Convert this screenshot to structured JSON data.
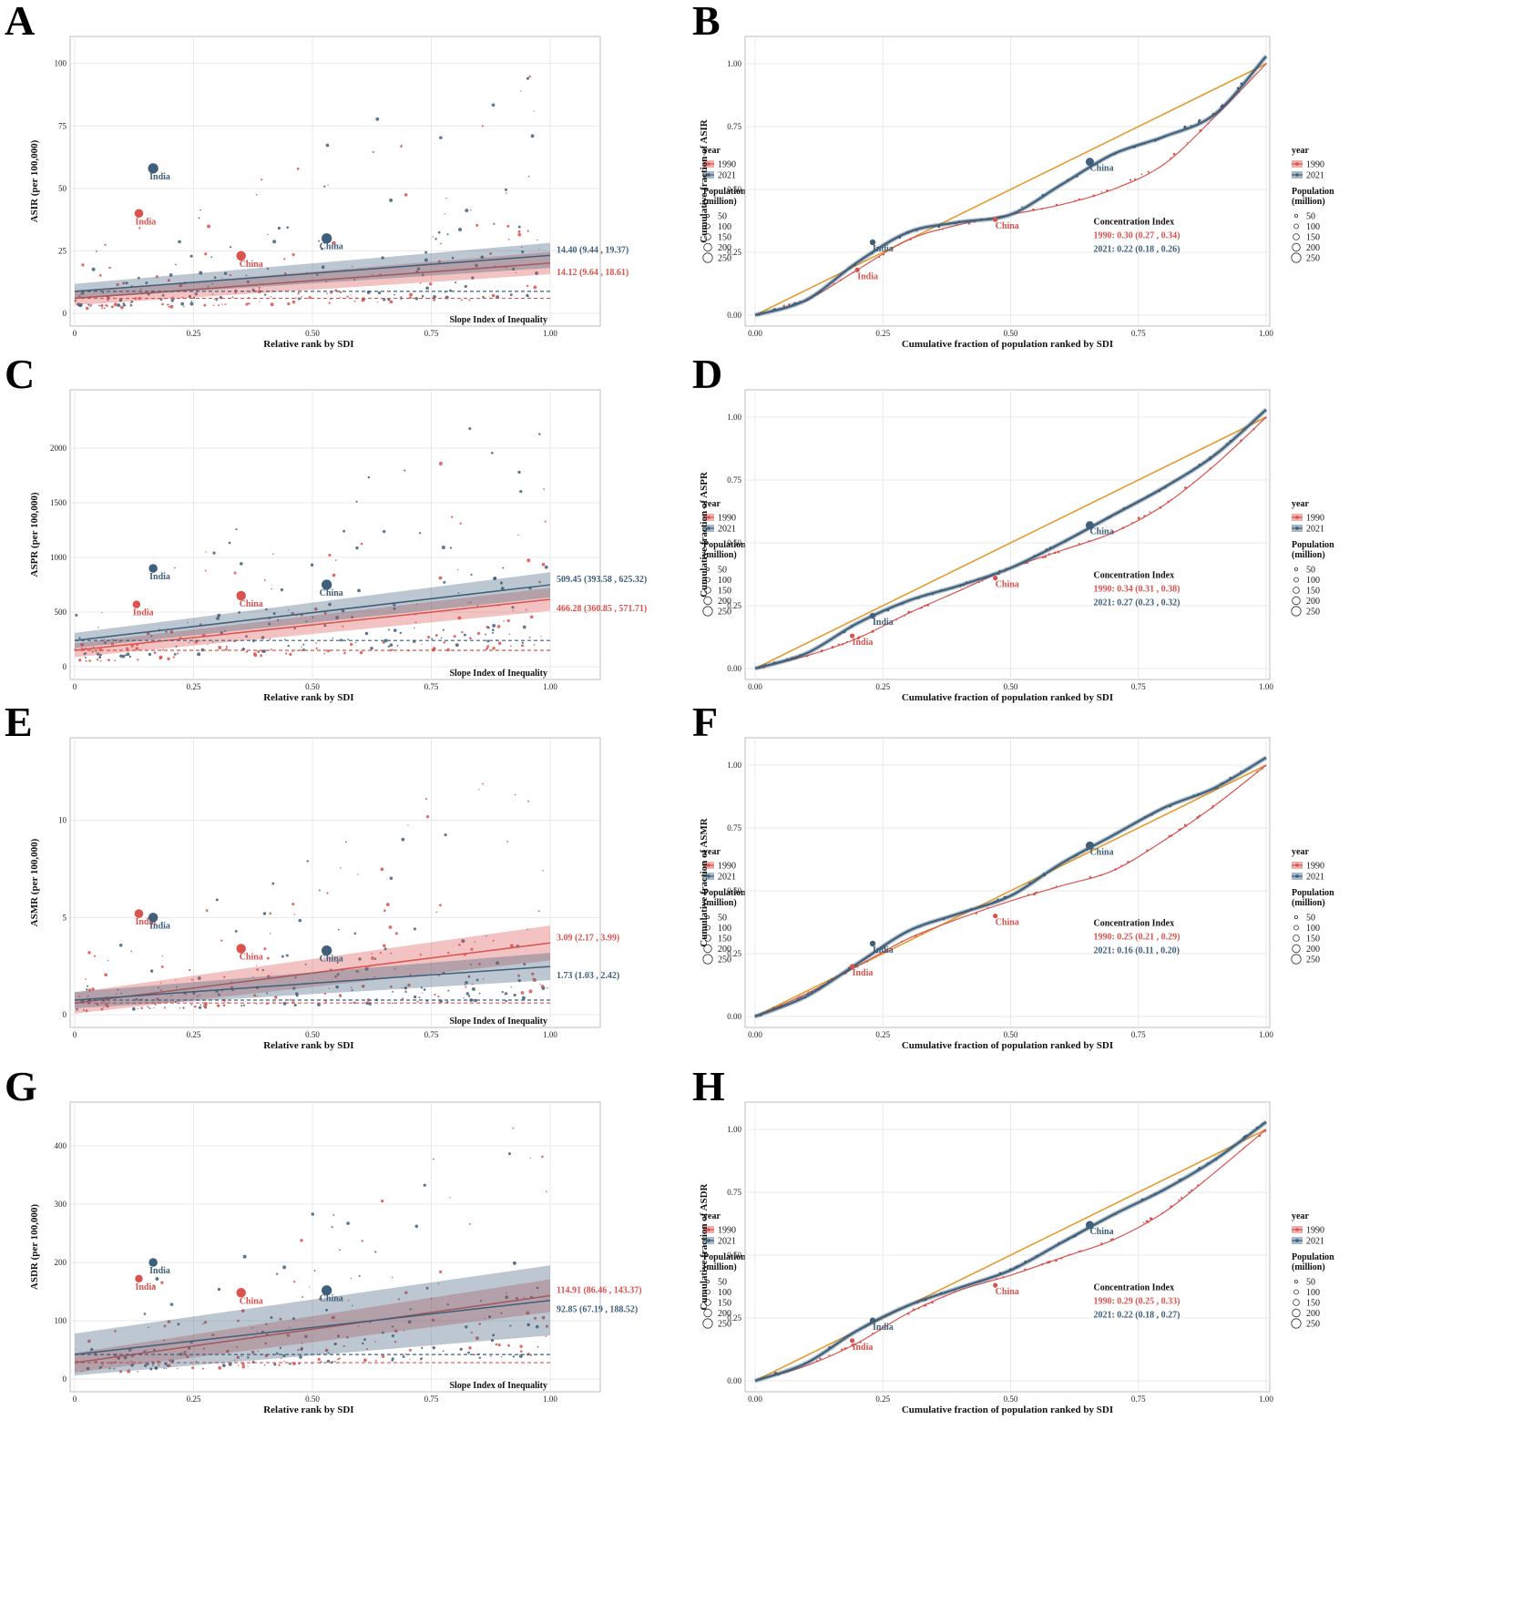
{
  "colors": {
    "y1990": "#d9534f",
    "y2021": "#3f5f7a",
    "equality": "#e69a2e",
    "panel_bg": "#ffffff",
    "grid": "#e8e8e8",
    "border": "#bdbdbd"
  },
  "legend": {
    "year_title": "year",
    "year_1990": "1990",
    "year_2021": "2021",
    "pop_title_1": "Population",
    "pop_title_2": "(million)",
    "pop_sizes": [
      "50",
      "100",
      "150",
      "200",
      "250"
    ]
  },
  "common": {
    "slope_title": "Slope Index of Inequality",
    "slope_xlabel": "Relative rank by SDI",
    "conc_xlabel": "Cumulative fraction of population ranked by SDI",
    "conc_title": "Concentration Index",
    "india": "India",
    "china": "China"
  },
  "chart_data": [
    {
      "panel": "A",
      "type": "scatter",
      "ylabel": "ASIR (per 100,000)",
      "ylim": [
        0,
        105
      ],
      "yticks": [
        0,
        25,
        50,
        75,
        100
      ],
      "xticks": [
        "0",
        "0.25",
        "0.50",
        "0.75",
        "1.00"
      ],
      "regression": [
        {
          "name": "1990",
          "intercept": 6.0,
          "slope": 14.12,
          "ci_halfwidth_end": 4.5,
          "mean": 6.0
        },
        {
          "name": "2021",
          "intercept": 8.8,
          "slope": 14.4,
          "ci_halfwidth_end": 5.0,
          "mean": 8.8
        }
      ],
      "annotations": [
        {
          "series": "2021",
          "text": "14.40 (9.44 , 19.37)"
        },
        {
          "series": "1990",
          "text": "14.12 (9.64 , 18.61)"
        }
      ],
      "countries": [
        {
          "name": "India",
          "series": "2021",
          "x": 0.165,
          "y": 58,
          "size": 250
        },
        {
          "name": "India",
          "series": "1990",
          "x": 0.135,
          "y": 40,
          "size": 150
        },
        {
          "name": "China",
          "series": "1990",
          "x": 0.35,
          "y": 23,
          "size": 200
        },
        {
          "name": "China",
          "series": "2021",
          "x": 0.53,
          "y": 30,
          "size": 250
        }
      ]
    },
    {
      "panel": "B",
      "type": "line",
      "ylabel": "Cumulative fraction of ASIR",
      "xticks": [
        "0.00",
        "0.25",
        "0.50",
        "0.75",
        "1.00"
      ],
      "yticks": [
        "0.00",
        "0.25",
        "0.50",
        "0.75",
        "1.00"
      ],
      "series": [
        {
          "name": "1990",
          "x": [
            0,
            0.1,
            0.2,
            0.3,
            0.4,
            0.5,
            0.6,
            0.7,
            0.8,
            0.9,
            1.0
          ],
          "y": [
            0,
            0.06,
            0.18,
            0.3,
            0.36,
            0.4,
            0.44,
            0.5,
            0.6,
            0.79,
            1.0
          ]
        },
        {
          "name": "2021",
          "x": [
            0,
            0.1,
            0.2,
            0.3,
            0.4,
            0.5,
            0.6,
            0.7,
            0.8,
            0.9,
            1.0
          ],
          "y": [
            0,
            0.06,
            0.21,
            0.33,
            0.37,
            0.4,
            0.52,
            0.64,
            0.71,
            0.8,
            1.03
          ]
        }
      ],
      "countries": [
        {
          "name": "India",
          "series": "1990",
          "x": 0.2,
          "y": 0.18
        },
        {
          "name": "India",
          "series": "2021",
          "x": 0.23,
          "y": 0.29
        },
        {
          "name": "China",
          "series": "1990",
          "x": 0.47,
          "y": 0.38
        },
        {
          "name": "China",
          "series": "2021",
          "x": 0.655,
          "y": 0.61
        }
      ],
      "ci_1990": "1990: 0.30 (0.27 , 0.34)",
      "ci_2021": "2021: 0.22 (0.18 , 0.26)"
    },
    {
      "panel": "C",
      "type": "scatter",
      "ylabel": "ASPR (per 100,000)",
      "ylim": [
        0,
        2400
      ],
      "yticks": [
        0,
        500,
        1000,
        1500,
        2000
      ],
      "xticks": [
        "0",
        "0.25",
        "0.50",
        "0.75",
        "1.00"
      ],
      "regression": [
        {
          "name": "1990",
          "intercept": 150,
          "slope": 466.28,
          "ci_halfwidth_end": 105,
          "mean": 150
        },
        {
          "name": "2021",
          "intercept": 240,
          "slope": 509.45,
          "ci_halfwidth_end": 115,
          "mean": 240
        }
      ],
      "annotations": [
        {
          "series": "2021",
          "text": "509.45 (393.58 , 625.32)"
        },
        {
          "series": "1990",
          "text": "466.28 (360.85 , 571.71)"
        }
      ],
      "countries": [
        {
          "name": "India",
          "series": "2021",
          "x": 0.165,
          "y": 900,
          "size": 150
        },
        {
          "name": "India",
          "series": "1990",
          "x": 0.13,
          "y": 570,
          "size": 100
        },
        {
          "name": "China",
          "series": "1990",
          "x": 0.35,
          "y": 650,
          "size": 200
        },
        {
          "name": "China",
          "series": "2021",
          "x": 0.53,
          "y": 750,
          "size": 250
        }
      ]
    },
    {
      "panel": "D",
      "type": "line",
      "ylabel": "Cumulative fraction of ASPR",
      "xticks": [
        "0.00",
        "0.25",
        "0.50",
        "0.75",
        "1.00"
      ],
      "yticks": [
        "0.00",
        "0.25",
        "0.50",
        "0.75",
        "1.00"
      ],
      "series": [
        {
          "name": "1990",
          "x": [
            0,
            0.1,
            0.2,
            0.3,
            0.4,
            0.5,
            0.6,
            0.7,
            0.8,
            0.9,
            1.0
          ],
          "y": [
            0,
            0.05,
            0.12,
            0.22,
            0.31,
            0.4,
            0.47,
            0.54,
            0.65,
            0.81,
            1.0
          ]
        },
        {
          "name": "2021",
          "x": [
            0,
            0.1,
            0.2,
            0.3,
            0.4,
            0.5,
            0.6,
            0.7,
            0.8,
            0.9,
            1.0
          ],
          "y": [
            0,
            0.06,
            0.18,
            0.27,
            0.33,
            0.4,
            0.5,
            0.61,
            0.72,
            0.85,
            1.03
          ]
        }
      ],
      "countries": [
        {
          "name": "India",
          "series": "1990",
          "x": 0.19,
          "y": 0.13
        },
        {
          "name": "India",
          "series": "2021",
          "x": 0.23,
          "y": 0.21
        },
        {
          "name": "China",
          "series": "1990",
          "x": 0.47,
          "y": 0.36
        },
        {
          "name": "China",
          "series": "2021",
          "x": 0.655,
          "y": 0.57
        }
      ],
      "ci_1990": "1990: 0.34 (0.31 , 0.38)",
      "ci_2021": "2021: 0.27 (0.23 , 0.32)"
    },
    {
      "panel": "E",
      "type": "scatter",
      "ylabel": "ASMR (per 100,000)",
      "ylim": [
        0,
        13.5
      ],
      "yticks": [
        0,
        5,
        10
      ],
      "xticks": [
        "0",
        "0.25",
        "0.50",
        "0.75",
        "1.00"
      ],
      "regression": [
        {
          "name": "1990",
          "intercept": 0.6,
          "slope": 3.09,
          "ci_halfwidth_end": 0.9,
          "mean": 0.6
        },
        {
          "name": "2021",
          "intercept": 0.75,
          "slope": 1.73,
          "ci_halfwidth_end": 0.7,
          "mean": 0.75
        }
      ],
      "annotations": [
        {
          "series": "1990",
          "text": "3.09 (2.17 , 3.99)"
        },
        {
          "series": "2021",
          "text": "1.73 (1.03 , 2.42)"
        }
      ],
      "countries": [
        {
          "name": "India",
          "series": "1990",
          "x": 0.135,
          "y": 5.2,
          "size": 150
        },
        {
          "name": "India",
          "series": "2021",
          "x": 0.165,
          "y": 5.0,
          "size": 200
        },
        {
          "name": "China",
          "series": "1990",
          "x": 0.35,
          "y": 3.4,
          "size": 200
        },
        {
          "name": "China",
          "series": "2021",
          "x": 0.53,
          "y": 3.3,
          "size": 250
        }
      ]
    },
    {
      "panel": "F",
      "type": "line",
      "ylabel": "Cumulative fraction of ASMR",
      "xticks": [
        "0.00",
        "0.25",
        "0.50",
        "0.75",
        "1.00"
      ],
      "yticks": [
        "0.00",
        "0.25",
        "0.50",
        "0.75",
        "1.00"
      ],
      "series": [
        {
          "name": "1990",
          "x": [
            0,
            0.1,
            0.2,
            0.3,
            0.4,
            0.5,
            0.6,
            0.7,
            0.8,
            0.9,
            1.0
          ],
          "y": [
            0,
            0.09,
            0.2,
            0.31,
            0.39,
            0.46,
            0.52,
            0.58,
            0.7,
            0.84,
            1.0
          ]
        },
        {
          "name": "2021",
          "x": [
            0,
            0.1,
            0.2,
            0.3,
            0.4,
            0.5,
            0.6,
            0.7,
            0.8,
            0.9,
            1.0
          ],
          "y": [
            0,
            0.08,
            0.21,
            0.34,
            0.41,
            0.48,
            0.61,
            0.72,
            0.83,
            0.91,
            1.03
          ]
        }
      ],
      "countries": [
        {
          "name": "India",
          "series": "1990",
          "x": 0.19,
          "y": 0.2
        },
        {
          "name": "India",
          "series": "2021",
          "x": 0.23,
          "y": 0.29
        },
        {
          "name": "China",
          "series": "1990",
          "x": 0.47,
          "y": 0.4
        },
        {
          "name": "China",
          "series": "2021",
          "x": 0.655,
          "y": 0.68
        }
      ],
      "ci_1990": "1990: 0.25 (0.21 , 0.29)",
      "ci_2021": "2021: 0.16 (0.11 , 0.20)"
    },
    {
      "panel": "G",
      "type": "scatter",
      "ylabel": "ASDR (per 100,000)",
      "ylim": [
        0,
        450
      ],
      "yticks": [
        0,
        100,
        200,
        300,
        400
      ],
      "xticks": [
        "0",
        "0.25",
        "0.50",
        "0.75",
        "1.00"
      ],
      "regression": [
        {
          "name": "1990",
          "intercept": 28,
          "slope": 114.91,
          "ci_halfwidth_end": 28,
          "mean": 28
        },
        {
          "name": "2021",
          "intercept": 42,
          "slope": 92.85,
          "ci_halfwidth_end": 60,
          "mean": 42
        }
      ],
      "annotations": [
        {
          "series": "1990",
          "text": "114.91 (86.46 , 143.37)"
        },
        {
          "series": "2021",
          "text": "92.85 (67.19 , 188.52)"
        }
      ],
      "countries": [
        {
          "name": "India",
          "series": "2021",
          "x": 0.165,
          "y": 200,
          "size": 150
        },
        {
          "name": "India",
          "series": "1990",
          "x": 0.135,
          "y": 172,
          "size": 100
        },
        {
          "name": "China",
          "series": "1990",
          "x": 0.35,
          "y": 148,
          "size": 200
        },
        {
          "name": "China",
          "series": "2021",
          "x": 0.53,
          "y": 152,
          "size": 250
        }
      ]
    },
    {
      "panel": "H",
      "type": "line",
      "ylabel": "Cumulative fraction of ASDR",
      "xticks": [
        "0.00",
        "0.25",
        "0.50",
        "0.75",
        "1.00"
      ],
      "yticks": [
        "0.00",
        "0.25",
        "0.50",
        "0.75",
        "1.00"
      ],
      "series": [
        {
          "name": "1990",
          "x": [
            0,
            0.1,
            0.2,
            0.3,
            0.4,
            0.5,
            0.6,
            0.7,
            0.8,
            0.9,
            1.0
          ],
          "y": [
            0,
            0.06,
            0.15,
            0.27,
            0.36,
            0.42,
            0.49,
            0.56,
            0.67,
            0.83,
            1.0
          ]
        },
        {
          "name": "2021",
          "x": [
            0,
            0.1,
            0.2,
            0.3,
            0.4,
            0.5,
            0.6,
            0.7,
            0.8,
            0.9,
            1.0
          ],
          "y": [
            0,
            0.07,
            0.2,
            0.3,
            0.37,
            0.44,
            0.55,
            0.66,
            0.76,
            0.88,
            1.03
          ]
        }
      ],
      "countries": [
        {
          "name": "India",
          "series": "1990",
          "x": 0.19,
          "y": 0.16
        },
        {
          "name": "India",
          "series": "2021",
          "x": 0.23,
          "y": 0.24
        },
        {
          "name": "China",
          "series": "1990",
          "x": 0.47,
          "y": 0.38
        },
        {
          "name": "China",
          "series": "2021",
          "x": 0.655,
          "y": 0.62
        }
      ],
      "ci_1990": "1990: 0.29 (0.25 , 0.33)",
      "ci_2021": "2021: 0.22 (0.18 , 0.27)"
    }
  ]
}
